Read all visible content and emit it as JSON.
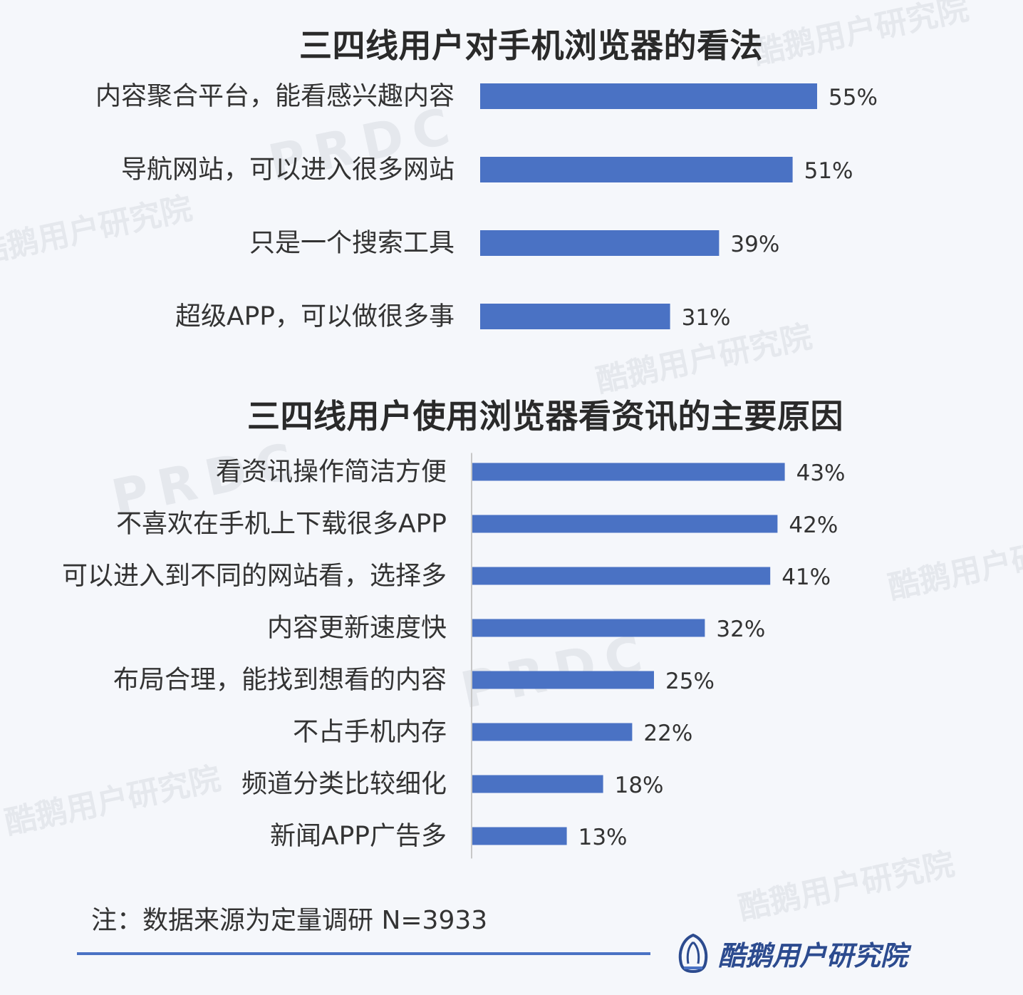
{
  "chart_data": [
    {
      "type": "bar",
      "orientation": "horizontal",
      "title": "三四线用户对手机浏览器的看法",
      "categories": [
        "内容聚合平台，能看感兴趣内容",
        "导航网站，可以进入很多网站",
        "只是一个搜索工具",
        "超级APP，可以做很多事"
      ],
      "values": [
        55,
        51,
        39,
        31
      ],
      "value_labels": [
        "55%",
        "51%",
        "39%",
        "31%"
      ],
      "xlim": [
        0,
        100
      ],
      "bar_color": "#4a72c4",
      "grid": false,
      "legend": "none"
    },
    {
      "type": "bar",
      "orientation": "horizontal",
      "title": "三四线用户使用浏览器看资讯的主要原因",
      "categories": [
        "看资讯操作简洁方便",
        "不喜欢在手机上下载很多APP",
        "可以进入到不同的网站看，选择多",
        "内容更新速度快",
        "布局合理，能找到想看的内容",
        "不占手机内存",
        "频道分类比较细化",
        "新闻APP广告多"
      ],
      "values": [
        43,
        42,
        41,
        32,
        25,
        22,
        18,
        13
      ],
      "value_labels": [
        "43%",
        "42%",
        "41%",
        "32%",
        "25%",
        "22%",
        "18%",
        "13%"
      ],
      "xlim": [
        0,
        100
      ],
      "bar_color": "#4a72c4",
      "grid": false,
      "legend": "none"
    }
  ],
  "footer": {
    "note": "注：数据来源为定量调研 N=3933",
    "brand": "酷鹅用户研究院",
    "accent_color": "#4a72c4"
  },
  "watermark": {
    "text": "酷鹅用户研究院",
    "text_en": "PRDC"
  }
}
